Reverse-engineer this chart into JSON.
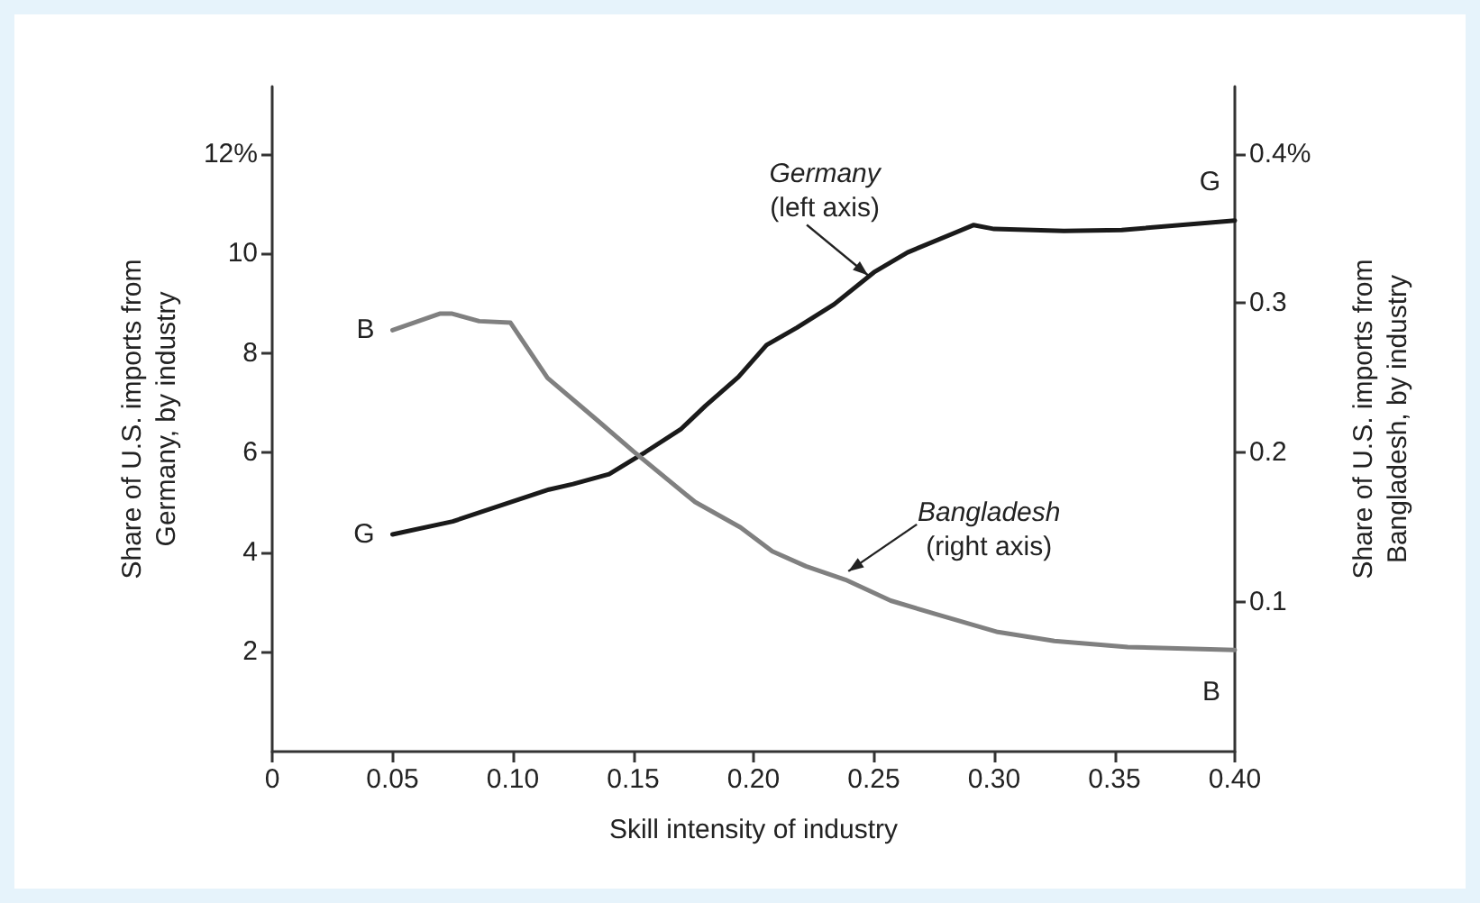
{
  "chart_data": {
    "type": "line",
    "xlabel": "Skill intensity of industry",
    "ylabel": "Share of U.S. imports from\nGermany, by industry",
    "y2label": "Share of U.S. imports from\nBangladesh, by industry",
    "xlim": [
      0,
      0.4
    ],
    "xticks": [
      0,
      {
        "value": 0.05,
        "label": "0.05"
      },
      {
        "value": 0.1,
        "label": "0.10"
      },
      {
        "value": 0.15,
        "label": "0.15"
      },
      {
        "value": 0.2,
        "label": "0.20"
      },
      {
        "value": 0.25,
        "label": "0.25"
      },
      {
        "value": 0.3,
        "label": "0.30"
      },
      {
        "value": 0.35,
        "label": "0.35"
      },
      {
        "value": 0.4,
        "label": "0.40"
      }
    ],
    "ylim": [
      0,
      13.35
    ],
    "yticks": [
      2,
      4,
      6,
      8,
      10,
      {
        "value": 12,
        "label": "12%"
      }
    ],
    "y2lim": [
      0,
      0.445
    ],
    "y2ticks": [
      0.1,
      0.2,
      0.3,
      {
        "value": 0.4,
        "label": "0.4%"
      }
    ],
    "marker": "none",
    "line_style": "solid",
    "series": [
      {
        "color": "#1a1a1a",
        "x": [
          0.05,
          0.075,
          0.1,
          0.115,
          0.125,
          0.14,
          0.155,
          0.17,
          0.18,
          0.1937,
          0.2054,
          0.218,
          0.2335,
          0.25,
          0.264,
          0.2915,
          0.3,
          0.329,
          0.353,
          0.4
        ],
        "values": [
          4.36,
          4.62,
          5.02,
          5.26,
          5.37,
          5.57,
          6.01,
          6.48,
          6.94,
          7.52,
          8.16,
          8.51,
          8.98,
          9.62,
          10.02,
          10.57,
          10.49,
          10.45,
          10.47,
          10.66
        ]
      },
      {
        "color": "#808080",
        "axis": "y2",
        "x": [
          0.05,
          0.0696,
          0.0748,
          0.086,
          0.099,
          0.1144,
          0.1356,
          0.15,
          0.1757,
          0.1946,
          0.2078,
          0.2218,
          0.2382,
          0.257,
          0.2757,
          0.3015,
          0.325,
          0.3555,
          0.4
        ],
        "values": [
          0.282,
          0.293,
          0.293,
          0.288,
          0.287,
          0.25,
          0.221,
          0.201,
          0.167,
          0.15,
          0.134,
          0.124,
          0.115,
          0.101,
          0.092,
          0.08,
          0.074,
          0.07,
          0.068
        ]
      }
    ],
    "annotations": [
      {
        "text": "G",
        "x": 0.05,
        "y": 4.36
      },
      {
        "text": "B",
        "x": 0.05,
        "y": 8.46
      },
      {
        "text": "G",
        "x": 0.4,
        "y": 10.66
      },
      {
        "text": "B",
        "x": 0.4,
        "y": 2.04
      },
      {
        "text": "Germany\n(left axis)",
        "x": 0.2476,
        "y": 9.56
      },
      {
        "text": "Bangladesh\n(right axis)",
        "x": 0.2394,
        "y": 3.62
      }
    ]
  }
}
